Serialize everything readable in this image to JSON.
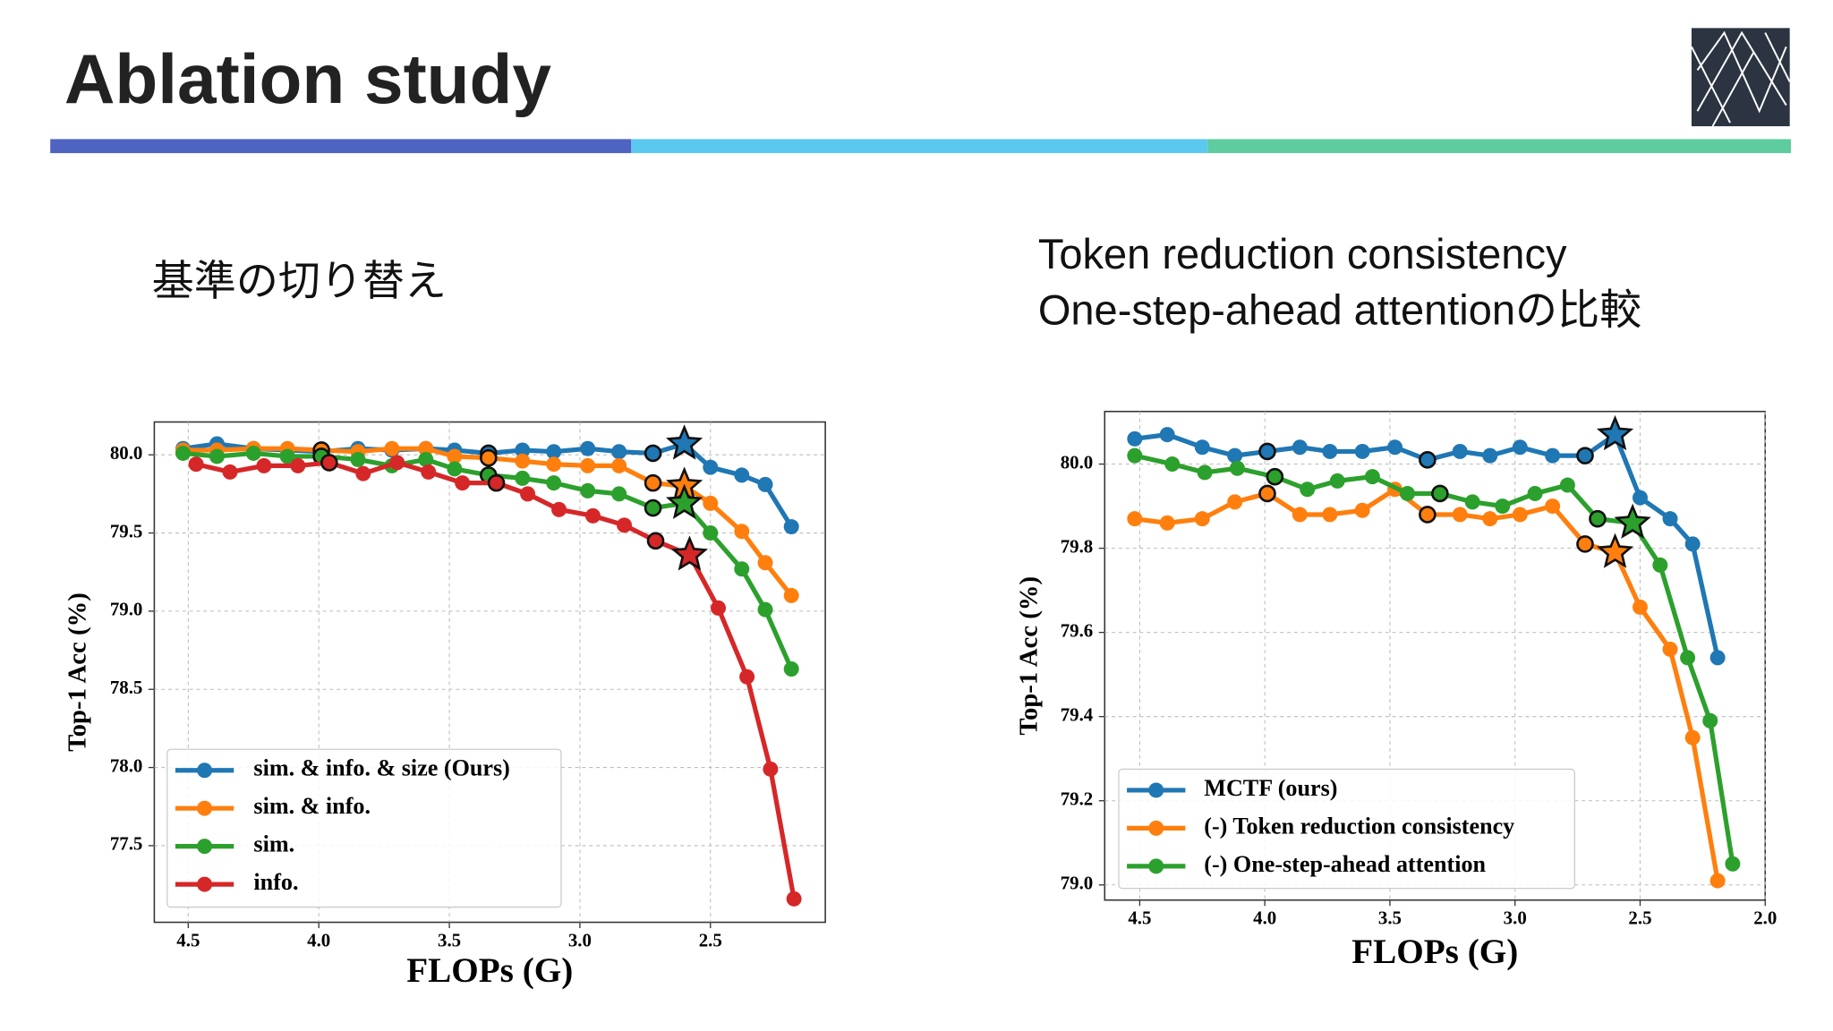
{
  "title": "Ablation study",
  "chart_data": [
    {
      "type": "line",
      "caption": [
        "基準の切り替え"
      ],
      "x_label": "FLOPs (G)",
      "y_label": "Top-1 Acc (%)",
      "xlim": [
        4.63,
        2.06
      ],
      "ylim": [
        77.01,
        80.21
      ],
      "xticks": [
        4.5,
        {
          "value": 4,
          "label": "4.0"
        },
        3.5,
        {
          "value": 3,
          "label": "3.0"
        },
        2.5
      ],
      "yticks": [
        77.5,
        {
          "value": 78,
          "label": "78.0"
        },
        78.5,
        {
          "value": 79,
          "label": "79.0"
        },
        79.5,
        {
          "value": 80,
          "label": "80.0"
        }
      ],
      "grid": true,
      "legend": "lower left",
      "outlined_points": [
        4,
        9,
        14
      ],
      "star_point": 15,
      "series": [
        {
          "name": "sim. & info. & size (Ours)",
          "color": "#1f77b4",
          "x": [
            4.52,
            4.39,
            4.25,
            4.12,
            3.99,
            3.85,
            3.72,
            3.59,
            3.48,
            3.35,
            3.22,
            3.1,
            2.97,
            2.85,
            2.72,
            2.6,
            2.5,
            2.38,
            2.29,
            2.19
          ],
          "values": [
            80.04,
            80.07,
            80.04,
            80.03,
            80.02,
            80.04,
            80.03,
            80.04,
            80.03,
            80.01,
            80.03,
            80.02,
            80.04,
            80.02,
            80.01,
            80.07,
            79.92,
            79.87,
            79.81,
            79.54
          ]
        },
        {
          "name": "sim. & info.",
          "color": "#ff7f0e",
          "x": [
            4.52,
            4.39,
            4.25,
            4.12,
            3.99,
            3.85,
            3.72,
            3.59,
            3.48,
            3.35,
            3.22,
            3.1,
            2.97,
            2.85,
            2.72,
            2.6,
            2.5,
            2.38,
            2.29,
            2.19
          ],
          "values": [
            80.03,
            80.03,
            80.04,
            80.04,
            80.03,
            80.02,
            80.04,
            80.04,
            79.99,
            79.98,
            79.96,
            79.94,
            79.93,
            79.93,
            79.82,
            79.8,
            79.69,
            79.51,
            79.31,
            79.1
          ]
        },
        {
          "name": "sim.",
          "color": "#2ca02c",
          "x": [
            4.52,
            4.39,
            4.25,
            4.12,
            3.99,
            3.85,
            3.72,
            3.59,
            3.48,
            3.35,
            3.22,
            3.1,
            2.97,
            2.85,
            2.72,
            2.6,
            2.5,
            2.38,
            2.29,
            2.19
          ],
          "values": [
            80.01,
            79.99,
            80.01,
            79.99,
            79.99,
            79.97,
            79.93,
            79.97,
            79.91,
            79.87,
            79.85,
            79.82,
            79.77,
            79.75,
            79.66,
            79.69,
            79.5,
            79.27,
            79.01,
            78.63
          ]
        },
        {
          "name": "info.",
          "color": "#d62728",
          "x": [
            4.47,
            4.34,
            4.21,
            4.08,
            3.96,
            3.83,
            3.7,
            3.58,
            3.45,
            3.32,
            3.2,
            3.08,
            2.95,
            2.83,
            2.71,
            2.58,
            2.47,
            2.36,
            2.27,
            2.18
          ],
          "values": [
            79.94,
            79.89,
            79.93,
            79.93,
            79.95,
            79.88,
            79.95,
            79.89,
            79.82,
            79.82,
            79.75,
            79.65,
            79.61,
            79.55,
            79.45,
            79.36,
            79.02,
            78.58,
            77.99,
            77.16
          ]
        }
      ]
    },
    {
      "type": "line",
      "caption": [
        "Token reduction consistency",
        "One-step-ahead attentionの比較"
      ],
      "x_label": "FLOPs (G)",
      "y_label": "Top-1 Acc (%)",
      "xlim": [
        4.64,
        2.0
      ],
      "ylim": [
        78.964,
        80.125
      ],
      "xticks": [
        4.5,
        {
          "value": 4,
          "label": "4.0"
        },
        3.5,
        {
          "value": 3,
          "label": "3.0"
        },
        2.5,
        {
          "value": 2,
          "label": "2.0"
        }
      ],
      "yticks": [
        {
          "value": 79,
          "label": "79.0"
        },
        79.2,
        79.4,
        79.6,
        79.8,
        {
          "value": 80,
          "label": "80.0"
        }
      ],
      "grid": true,
      "legend": "lower left",
      "outlined_points": [
        4,
        9,
        14
      ],
      "star_point": 15,
      "series": [
        {
          "name": "MCTF (ours)",
          "color": "#1f77b4",
          "x": [
            4.52,
            4.39,
            4.25,
            4.12,
            3.99,
            3.86,
            3.74,
            3.61,
            3.48,
            3.35,
            3.22,
            3.1,
            2.98,
            2.85,
            2.72,
            2.6,
            2.5,
            2.38,
            2.29,
            2.19
          ],
          "values": [
            80.06,
            80.07,
            80.04,
            80.02,
            80.03,
            80.04,
            80.03,
            80.03,
            80.04,
            80.01,
            80.03,
            80.02,
            80.04,
            80.02,
            80.02,
            80.07,
            79.92,
            79.87,
            79.81,
            79.54
          ]
        },
        {
          "name": "(-) Token reduction consistency",
          "color": "#ff7f0e",
          "x": [
            4.52,
            4.39,
            4.25,
            4.12,
            3.99,
            3.86,
            3.74,
            3.61,
            3.48,
            3.35,
            3.22,
            3.1,
            2.98,
            2.85,
            2.72,
            2.6,
            2.5,
            2.38,
            2.29,
            2.19
          ],
          "values": [
            79.87,
            79.86,
            79.87,
            79.91,
            79.93,
            79.88,
            79.88,
            79.89,
            79.94,
            79.88,
            79.88,
            79.87,
            79.88,
            79.9,
            79.81,
            79.79,
            79.66,
            79.56,
            79.35,
            79.01
          ]
        },
        {
          "name": "(-) One-step-ahead attention",
          "color": "#2ca02c",
          "x": [
            4.52,
            4.37,
            4.24,
            4.11,
            3.96,
            3.83,
            3.71,
            3.57,
            3.43,
            3.3,
            3.17,
            3.05,
            2.92,
            2.79,
            2.67,
            2.53,
            2.42,
            2.31,
            2.22,
            2.13
          ],
          "values": [
            80.02,
            80.0,
            79.98,
            79.99,
            79.97,
            79.94,
            79.96,
            79.97,
            79.93,
            79.93,
            79.91,
            79.9,
            79.93,
            79.95,
            79.87,
            79.86,
            79.76,
            79.54,
            79.39,
            79.05
          ]
        }
      ]
    }
  ]
}
